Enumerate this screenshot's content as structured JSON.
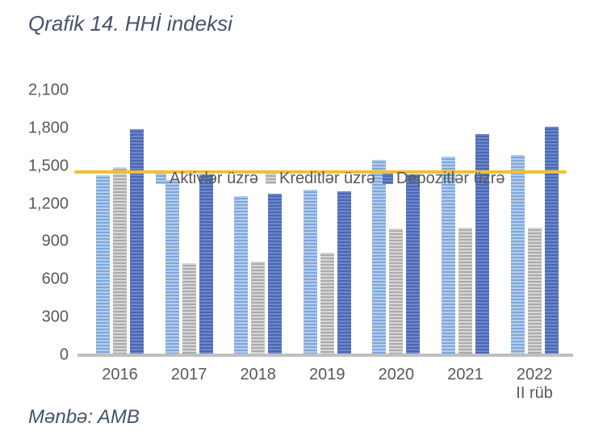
{
  "title": "Qrafik 14. HHİ indeksi",
  "source": "Mənbə: AMB",
  "colors": {
    "title_text": "#44546A",
    "axis_text": "#595959",
    "axis_line": "#BFBFBF",
    "reference_line": "#F2C02E"
  },
  "chart_data": {
    "type": "bar",
    "title": "Qrafik 14. HHİ indeksi",
    "categories": [
      "2016",
      "2017",
      "2018",
      "2019",
      "2020",
      "2021",
      "2022"
    ],
    "category_sublabels": [
      "",
      "",
      "",
      "",
      "",
      "",
      "II rüb"
    ],
    "series": [
      {
        "name": "Aktivlər üzrə",
        "values": [
          1430,
          1390,
          1260,
          1310,
          1550,
          1575,
          1590
        ],
        "color": "#8FB4E2",
        "stripe_light": "#B3CDED",
        "stripe_dark": "#7EA7DA"
      },
      {
        "name": "Kreditlər üzrə",
        "values": [
          1490,
          730,
          745,
          815,
          1005,
          1015,
          1010
        ],
        "color": "#C3C3C3",
        "stripe_light": "#D6D6D6",
        "stripe_dark": "#ABABAB"
      },
      {
        "name": "Depozitlər üzrə",
        "values": [
          1790,
          1435,
          1280,
          1300,
          1435,
          1755,
          1815
        ],
        "color": "#5B7CC6",
        "stripe_light": "#6D87CB",
        "stripe_dark": "#4A67B5"
      }
    ],
    "reference_line": {
      "value": 1455,
      "color": "#F2C02E"
    },
    "ylim": [
      0,
      2100
    ],
    "ytick_step": 300,
    "ytick_labels": [
      "0",
      "300",
      "600",
      "900",
      "1,200",
      "1,500",
      "1,800",
      "2,100"
    ],
    "legend_position": "top",
    "grid": false,
    "source": "Mənbə: AMB"
  }
}
